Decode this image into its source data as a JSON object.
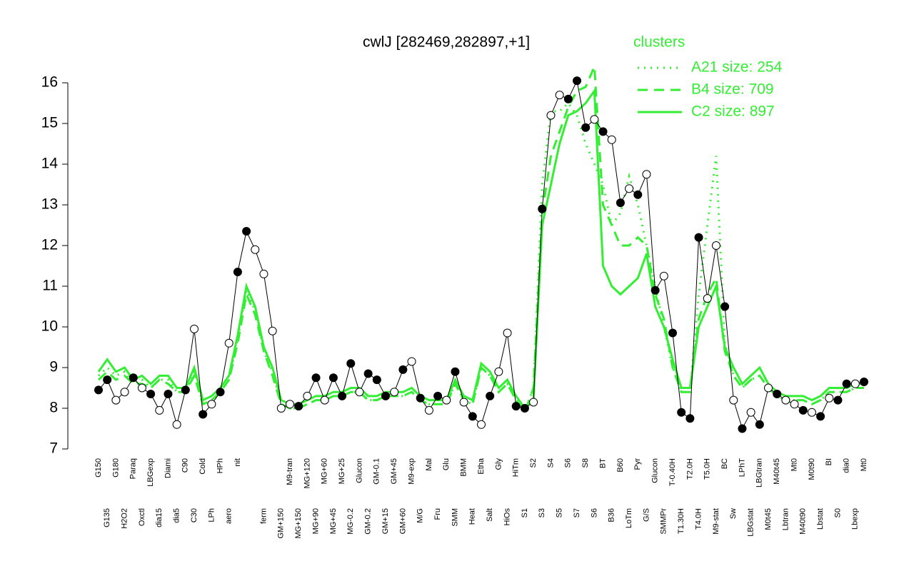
{
  "chart_data": {
    "type": "line",
    "title": "cwlJ [282469,282897,+1]",
    "legend_title": "clusters",
    "legend_position": "top-right",
    "ylim": [
      7,
      16
    ],
    "yticks": [
      7,
      8,
      9,
      10,
      11,
      12,
      13,
      14,
      15,
      16
    ],
    "categories": [
      "G150",
      "G135",
      "G180",
      "H2O2",
      "Paraq",
      "Oxctl",
      "LBGexp",
      "dia15",
      "Diami",
      "dia5",
      "C90",
      "C30",
      "Cold",
      "LPh",
      "HPh",
      "aero",
      "nit",
      null,
      null,
      "ferm",
      null,
      "GM+150",
      "M9-tran",
      "MG+150",
      "MG+120",
      "MG+90",
      "MG+60",
      "MG+45",
      "MG+25",
      "MG-0.2",
      "Glucon",
      "GM-0.2",
      "GM-0.1",
      "GM+15",
      "GM+45",
      "GM+60",
      "M9-exp",
      "M/G",
      "Mal",
      "Fru",
      "Glu",
      "SMM",
      "BMM",
      "Heat",
      "Etha",
      "Salt",
      "Gly",
      "HiOs",
      "HiTm",
      "S1",
      "S2",
      "S3",
      "S4",
      "S5",
      "S6",
      "S7",
      "S8",
      "S6",
      "BT",
      "B36",
      "B60",
      "LoTm",
      "Pyr",
      "G/S",
      "Glucon",
      "SMMPr",
      "T-0.40H",
      "T1.30H",
      "T2.0H",
      "T4.0H",
      "T5.0H",
      "M9-stat",
      "BC",
      "Sw",
      "LPhT",
      "LBGstat",
      "LBGtran",
      "M0t45",
      "M40t45",
      "Lbtran",
      "Mt0",
      "M40t90",
      "M0t90",
      "Lbstat",
      "BI",
      "S0",
      "dia0",
      "Lbexp",
      "Mt0"
    ],
    "values": [
      8.45,
      8.7,
      8.2,
      8.4,
      8.75,
      8.5,
      8.35,
      7.95,
      8.35,
      7.6,
      8.45,
      9.95,
      7.85,
      8.1,
      8.4,
      9.6,
      11.35,
      12.35,
      11.9,
      11.3,
      9.9,
      8.0,
      8.1,
      8.05,
      8.3,
      8.75,
      8.2,
      8.75,
      8.3,
      9.1,
      8.4,
      8.85,
      8.7,
      8.3,
      8.4,
      8.95,
      9.15,
      8.25,
      7.95,
      8.3,
      8.2,
      8.9,
      8.15,
      7.8,
      7.6,
      8.3,
      8.9,
      9.85,
      8.05,
      8.0,
      8.15,
      12.9,
      15.2,
      15.7,
      15.6,
      16.05,
      14.9,
      15.1,
      14.8,
      14.6,
      13.05,
      13.4,
      13.25,
      13.75,
      10.9,
      11.25,
      9.85,
      7.9,
      7.75,
      12.2,
      10.7,
      12.0,
      10.5,
      8.2,
      7.5,
      7.9,
      7.6,
      8.5,
      8.35,
      8.2,
      8.1,
      7.95,
      7.9,
      7.8,
      8.25,
      8.2,
      8.6,
      8.6,
      8.65
    ],
    "marker_filled": [
      true,
      true,
      false,
      false,
      true,
      false,
      true,
      false,
      true,
      false,
      true,
      false,
      true,
      false,
      true,
      false,
      true,
      true,
      false,
      false,
      false,
      false,
      false,
      true,
      false,
      true,
      false,
      true,
      true,
      true,
      false,
      true,
      true,
      true,
      false,
      true,
      false,
      true,
      false,
      true,
      false,
      true,
      false,
      true,
      false,
      true,
      false,
      false,
      true,
      true,
      false,
      true,
      false,
      false,
      true,
      true,
      true,
      false,
      true,
      false,
      true,
      false,
      true,
      false,
      true,
      false,
      true,
      true,
      true,
      true,
      false,
      false,
      true,
      false,
      true,
      false,
      true,
      false,
      true,
      false,
      false,
      true,
      false,
      true,
      false,
      true,
      true,
      false,
      true
    ],
    "series": [
      {
        "name": "A21 size: 254",
        "color": "#33ee33",
        "dash": "dotted",
        "values": [
          8.8,
          9.0,
          8.8,
          8.9,
          8.6,
          8.7,
          8.5,
          8.7,
          8.7,
          8.4,
          8.4,
          8.9,
          8.1,
          8.2,
          8.4,
          8.7,
          9.7,
          10.9,
          10.4,
          9.4,
          8.9,
          8.1,
          8.0,
          8.0,
          8.1,
          8.2,
          8.2,
          8.3,
          8.3,
          8.4,
          8.4,
          8.2,
          8.2,
          8.3,
          8.3,
          8.3,
          8.4,
          8.2,
          8.1,
          8.1,
          8.1,
          8.6,
          8.2,
          8.1,
          9.0,
          8.8,
          8.4,
          8.6,
          8.2,
          7.9,
          8.5,
          13.5,
          15.3,
          15.3,
          15.5,
          15.2,
          14.5,
          14.0,
          13.5,
          12.5,
          12.8,
          13.7,
          13.0,
          12.0,
          11.0,
          10.0,
          9.0,
          8.4,
          8.4,
          10.8,
          12.5,
          14.2,
          9.6,
          8.8,
          8.5,
          8.7,
          8.8,
          8.5,
          8.3,
          8.2,
          8.2,
          8.2,
          8.1,
          8.2,
          8.4,
          8.4,
          8.4,
          8.5,
          8.5
        ]
      },
      {
        "name": "B4 size: 709",
        "color": "#33ee33",
        "dash": "dashed",
        "values": [
          8.7,
          8.9,
          8.7,
          8.8,
          8.6,
          8.6,
          8.5,
          8.7,
          8.6,
          8.4,
          8.4,
          8.8,
          8.1,
          8.2,
          8.4,
          8.7,
          9.6,
          10.8,
          10.3,
          9.4,
          8.8,
          8.1,
          8.0,
          8.0,
          8.1,
          8.2,
          8.2,
          8.3,
          8.3,
          8.4,
          8.4,
          8.2,
          8.2,
          8.3,
          8.3,
          8.3,
          8.4,
          8.2,
          8.1,
          8.1,
          8.1,
          8.6,
          8.2,
          8.1,
          9.0,
          8.8,
          8.4,
          8.6,
          8.2,
          7.9,
          8.5,
          12.8,
          14.2,
          14.8,
          15.4,
          15.8,
          15.9,
          16.4,
          13.0,
          12.5,
          12.0,
          12.0,
          12.2,
          12.0,
          10.8,
          10.2,
          9.0,
          8.4,
          8.4,
          10.2,
          10.8,
          11.2,
          9.4,
          8.8,
          8.5,
          8.7,
          8.8,
          8.5,
          8.3,
          8.2,
          8.2,
          8.2,
          8.1,
          8.2,
          8.4,
          8.4,
          8.4,
          8.5,
          8.5
        ]
      },
      {
        "name": "C2 size: 897",
        "color": "#33ee33",
        "dash": "solid",
        "values": [
          8.9,
          9.2,
          8.9,
          9.0,
          8.7,
          8.8,
          8.6,
          8.8,
          8.8,
          8.5,
          8.5,
          9.0,
          8.2,
          8.3,
          8.5,
          8.8,
          9.8,
          11.0,
          10.5,
          9.5,
          9.0,
          8.2,
          8.1,
          8.1,
          8.2,
          8.3,
          8.3,
          8.4,
          8.4,
          8.5,
          8.5,
          8.3,
          8.3,
          8.4,
          8.4,
          8.4,
          8.5,
          8.3,
          8.2,
          8.2,
          8.2,
          8.7,
          8.3,
          8.2,
          9.1,
          8.9,
          8.5,
          8.7,
          8.3,
          8.0,
          8.2,
          12.5,
          13.5,
          14.5,
          15.2,
          15.3,
          15.5,
          15.8,
          11.5,
          11.0,
          10.8,
          11.0,
          11.2,
          11.8,
          10.5,
          10.0,
          9.2,
          8.5,
          8.5,
          10.0,
          10.5,
          11.0,
          9.5,
          9.0,
          8.6,
          8.8,
          9.0,
          8.6,
          8.4,
          8.3,
          8.3,
          8.3,
          8.2,
          8.3,
          8.5,
          8.5,
          8.5,
          8.6,
          8.6
        ]
      }
    ]
  }
}
